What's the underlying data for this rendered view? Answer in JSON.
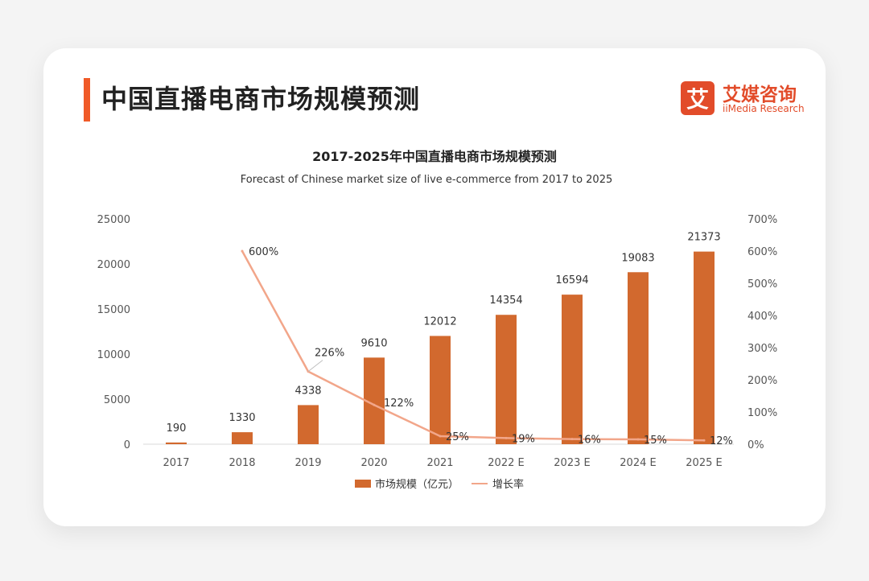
{
  "page": {
    "title": "中国直播电商市场规模预测"
  },
  "logo": {
    "mark": "艾",
    "name_cn": "艾媒咨询",
    "name_en": "iiMedia Research"
  },
  "colors": {
    "bar": "#d2692e",
    "line": "#f2a68a",
    "accent": "#f05a28",
    "brand": "#e24c2a"
  },
  "chart_data": {
    "type": "bar",
    "title": "2017-2025年中国直播电商市场规模预测",
    "subtitle": "Forecast of Chinese market size of live e-commerce from 2017 to 2025",
    "categories": [
      "2017",
      "2018",
      "2019",
      "2020",
      "2021",
      "2022 E",
      "2023 E",
      "2024 E",
      "2025 E"
    ],
    "series": [
      {
        "name": "市场规模（亿元）",
        "type": "bar",
        "axis": "left",
        "values": [
          190,
          1330,
          4338,
          9610,
          12012,
          14354,
          16594,
          19083,
          21373
        ],
        "labels": [
          "190",
          "1330",
          "4338",
          "9610",
          "12012",
          "14354",
          "16594",
          "19083",
          "21373"
        ]
      },
      {
        "name": "增长率",
        "type": "line",
        "axis": "right",
        "values": [
          null,
          600,
          226,
          122,
          25,
          19,
          16,
          15,
          12
        ],
        "labels": [
          "",
          "600%",
          "226%",
          "122%",
          "25%",
          "19%",
          "16%",
          "15%",
          "12%"
        ]
      }
    ],
    "y_left": {
      "range": [
        0,
        25000
      ],
      "ticks": [
        "0",
        "5000",
        "10000",
        "15000",
        "20000",
        "25000"
      ]
    },
    "y_right": {
      "range": [
        0,
        700
      ],
      "ticks": [
        "0%",
        "100%",
        "200%",
        "300%",
        "400%",
        "500%",
        "600%",
        "700%"
      ]
    },
    "grid": false,
    "legend_position": "bottom"
  }
}
